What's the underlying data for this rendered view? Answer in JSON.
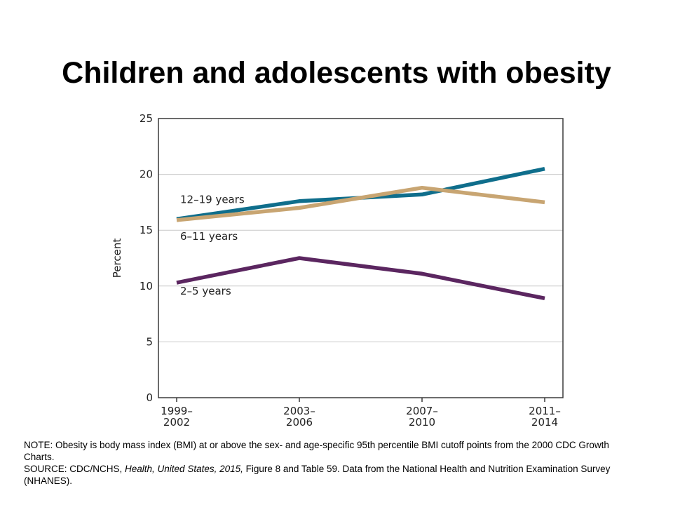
{
  "slide": {
    "title": "Children and adolescents with obesity"
  },
  "chart_data": {
    "type": "line",
    "title": "",
    "ylabel": "Percent",
    "xlabel": "",
    "ylim": [
      0,
      25
    ],
    "yticks": [
      0,
      5,
      10,
      15,
      20,
      25
    ],
    "categories": [
      [
        "1999–",
        "2002"
      ],
      [
        "2003–",
        "2006"
      ],
      [
        "2007–",
        "2010"
      ],
      [
        "2011–",
        "2014"
      ]
    ],
    "grid": true,
    "legend": "inline-labels",
    "series": [
      {
        "name": "12–19 years",
        "color": "#0f6e8c",
        "values": [
          16.0,
          17.6,
          18.2,
          20.5
        ]
      },
      {
        "name": "6–11 years",
        "color": "#c8a572",
        "values": [
          15.9,
          17.0,
          18.8,
          17.5
        ]
      },
      {
        "name": "2–5 years",
        "color": "#5b2660",
        "values": [
          10.3,
          12.5,
          11.1,
          8.9
        ]
      }
    ]
  },
  "footnote": {
    "note": "NOTE: Obesity is body mass index (BMI) at or above the sex- and age-specific 95th percentile BMI cutoff points from the 2000 CDC Growth Charts.",
    "source_prefix": "SOURCE: CDC/NCHS, ",
    "source_italic": "Health, United States, 2015,",
    "source_suffix": " Figure 8 and Table 59. Data from the National Health and Nutrition Examination Survey (NHANES)."
  }
}
